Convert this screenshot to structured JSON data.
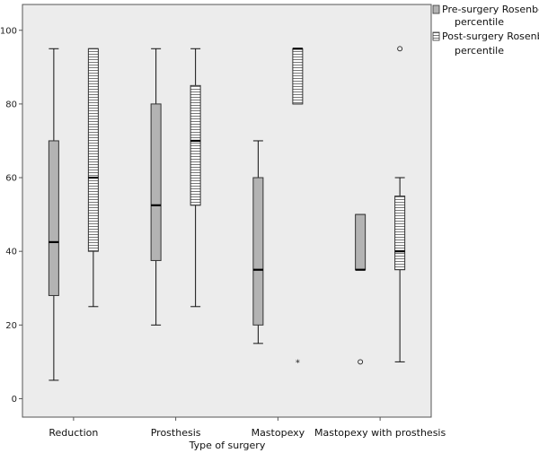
{
  "chart_data": {
    "type": "box",
    "title": "",
    "xlabel": "Type of surgery",
    "ylabel": "",
    "ylim": [
      -5,
      107
    ],
    "yticks": [
      0,
      20,
      40,
      60,
      80,
      100
    ],
    "grid": false,
    "legend_position": "right-top",
    "categories": [
      "Reduction",
      "Prosthesis",
      "Mastopexy",
      "Mastopexy with prosthesis"
    ],
    "series": [
      {
        "name": "Pre-surgery Rosenberg percentile",
        "fill": "#b3b3b3",
        "pattern": "solid",
        "boxes": [
          {
            "whisker_low": 5,
            "q1": 28,
            "median": 42.5,
            "q3": 70,
            "whisker_high": 95,
            "outliers": []
          },
          {
            "whisker_low": 20,
            "q1": 37.5,
            "median": 52.5,
            "q3": 80,
            "whisker_high": 95,
            "outliers": []
          },
          {
            "whisker_low": 15,
            "q1": 20,
            "median": 35,
            "q3": 60,
            "whisker_high": 70,
            "outliers": []
          },
          {
            "whisker_low": 35,
            "q1": 35,
            "median": 35,
            "q3": 50,
            "whisker_high": 50,
            "outliers": [
              {
                "value": 10,
                "marker": "circle"
              }
            ]
          }
        ]
      },
      {
        "name": "Post-surgery Rosenberg percentile",
        "fill": "#ffffff",
        "pattern": "horizontal-lines",
        "boxes": [
          {
            "whisker_low": 25,
            "q1": 40,
            "median": 60,
            "q3": 95,
            "whisker_high": 95,
            "outliers": []
          },
          {
            "whisker_low": 25,
            "q1": 52.5,
            "median": 70,
            "q3": 85,
            "whisker_high": 95,
            "outliers": []
          },
          {
            "whisker_low": 80,
            "q1": 80,
            "median": 95,
            "q3": 95,
            "whisker_high": 95,
            "outliers": [
              {
                "value": 10,
                "marker": "star"
              }
            ]
          },
          {
            "whisker_low": 10,
            "q1": 35,
            "median": 40,
            "q3": 55,
            "whisker_high": 60,
            "outliers": [
              {
                "value": 95,
                "marker": "circle"
              }
            ]
          }
        ]
      }
    ],
    "legend": {
      "entries": [
        {
          "line1": "Pre-surgery Rosenberg",
          "line2": "percentile"
        },
        {
          "line1": "Post-surgery Rosenberg",
          "line2": "percentile"
        }
      ]
    }
  }
}
